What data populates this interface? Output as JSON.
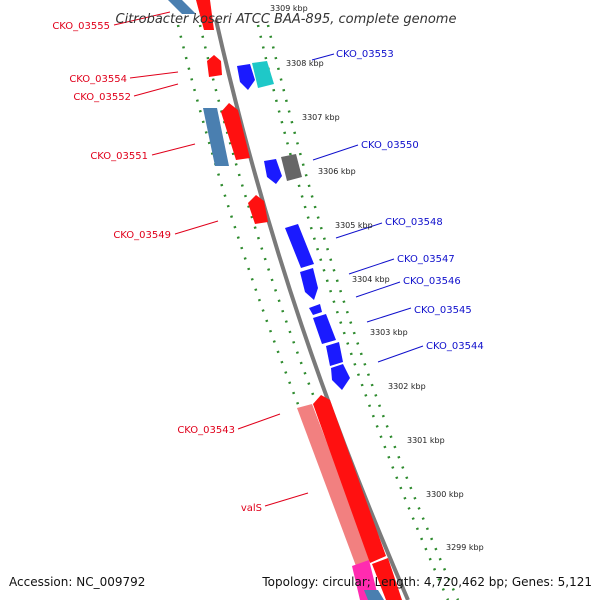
{
  "title": "Citrobacter koseri ATCC BAA-895, complete genome",
  "footer": {
    "accession": "Accession: NC_009792",
    "summary": "Topology: circular; Length: 4,720,462 bp; Genes: 5,121"
  },
  "colors": {
    "reverse_strand": "#ff1010",
    "forward_strand": "#1a1aff",
    "steelblue": "#4a7fb0",
    "pink": "#f28080",
    "cyan": "#1ec8c8",
    "gray": "#666666",
    "magenta": "#ff2bb0",
    "backbone": "#808080",
    "dots": "#2e8b2e"
  },
  "scale_labels": [
    "3309 kbp",
    "3308 kbp",
    "3307 kbp",
    "3306 kbp",
    "3305 kbp",
    "3304 kbp",
    "3303 kbp",
    "3302 kbp",
    "3301 kbp",
    "3300 kbp",
    "3299 kbp"
  ],
  "reverse_labels": [
    "CKO_03555",
    "CKO_03554",
    "CKO_03552",
    "CKO_03551",
    "CKO_03549",
    "CKO_03543",
    "valS"
  ],
  "forward_labels": [
    "CKO_03553",
    "CKO_03550",
    "CKO_03548",
    "CKO_03547",
    "CKO_03546",
    "CKO_03545",
    "CKO_03544"
  ]
}
